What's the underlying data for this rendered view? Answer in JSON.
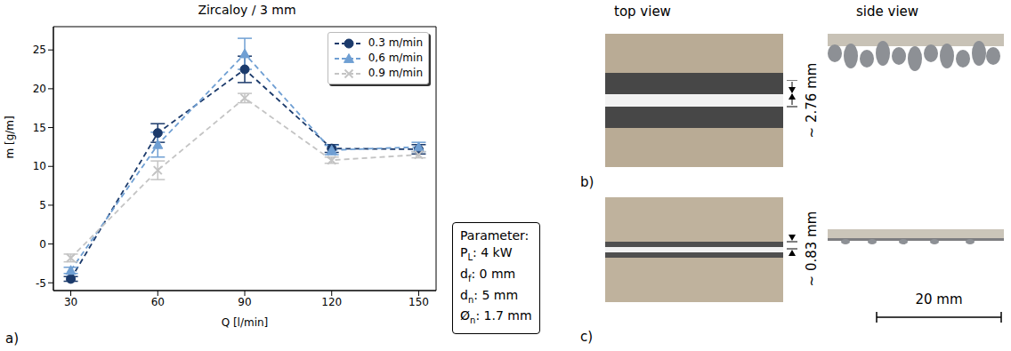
{
  "chart_data": {
    "type": "line",
    "title": "Zircaloy / 3 mm",
    "x_label": "Q [l/min]",
    "y_label": "m [g/m]",
    "x": [
      30,
      60,
      90,
      120,
      150
    ],
    "xlim": [
      24,
      156
    ],
    "xticks": [
      30,
      60,
      90,
      120,
      150
    ],
    "ylim": [
      -6,
      28
    ],
    "yticks": [
      -5,
      0,
      5,
      10,
      15,
      20,
      25
    ],
    "grid": false,
    "legend": "upper right",
    "series": [
      {
        "name": "0.3 m/min",
        "color": "#1b3a6b",
        "marker": "circle",
        "line_style": "dashed",
        "values": [
          -4.5,
          14.3,
          22.5,
          12.3,
          12.2
        ],
        "errors": [
          0.3,
          1.2,
          1.7,
          0.5,
          0.6
        ]
      },
      {
        "name": "0,6 m/min",
        "color": "#6f9fd3",
        "marker": "triangle",
        "line_style": "dashed",
        "values": [
          -3.4,
          12.8,
          24.5,
          12.1,
          12.5
        ],
        "errors": [
          0.4,
          1.6,
          2.0,
          0.6,
          0.6
        ]
      },
      {
        "name": "0.9 m/min",
        "color": "#c4c4c4",
        "marker": "x",
        "line_style": "dashed",
        "values": [
          -1.8,
          9.5,
          18.8,
          10.8,
          11.5
        ],
        "errors": [
          0.5,
          1.2,
          0.6,
          0.4,
          0.4
        ]
      }
    ]
  },
  "parameter_box": {
    "title": "Parameter:",
    "lines": [
      {
        "symbol": "P",
        "sub": "L",
        "text": ": 4 kW"
      },
      {
        "symbol": "d",
        "sub": "f",
        "text": ": 0 mm"
      },
      {
        "symbol": "d",
        "sub": "n",
        "text": ": 5 mm"
      },
      {
        "symbol": "Ø",
        "sub": "n",
        "text": ": 1.7 mm"
      }
    ]
  },
  "panels": {
    "a": "a)",
    "b": "b)",
    "c": "c)"
  },
  "photos": {
    "top_view": "top view",
    "side_view": "side view",
    "b_width": "~ 2.76 mm",
    "c_width": "~ 0.83 mm",
    "scale_bar": "20 mm"
  }
}
